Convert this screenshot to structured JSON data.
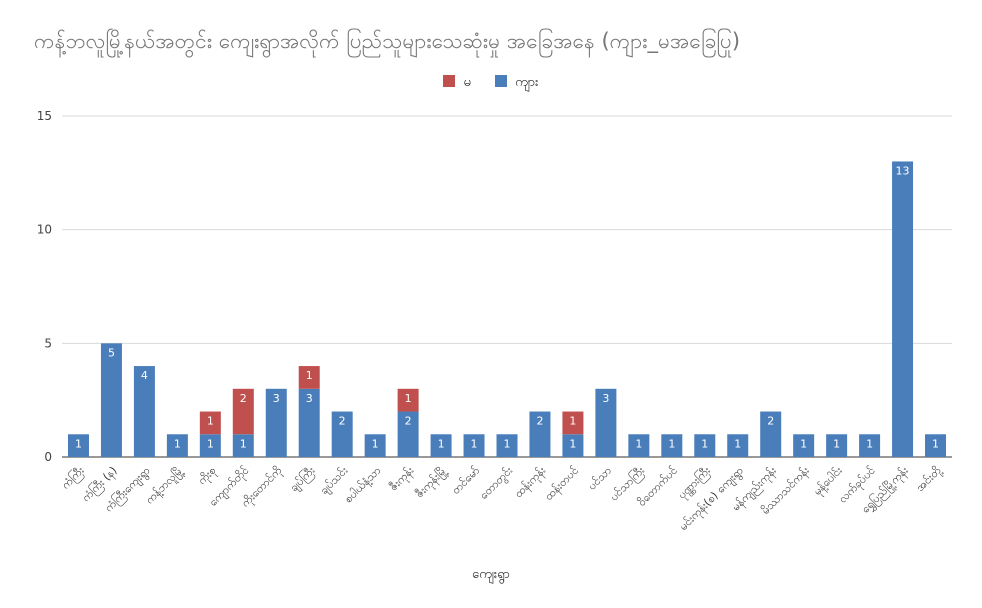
{
  "chart_data": {
    "type": "bar",
    "stacked": true,
    "title": "ကန့်ဘလူမြို့နယ်အတွင်း ကျေးရွာအလိုက် ပြည်သူများသေဆုံးမှု အခြေအနေ (ကျား_မအခြေပြု)",
    "xlabel": "ကျေးရွာ",
    "ylabel": "",
    "ylim": [
      0,
      15
    ],
    "yticks": [
      0,
      5,
      10,
      15
    ],
    "grid": true,
    "legend_position": "top",
    "categories": [
      "ကံကြီး",
      "ကံကြီး (န)",
      "ကံကြီးကျေးရွာ",
      "ကန့်ဘလူမြို့",
      "ကိုးစု",
      "ကျောက်တိုင်",
      "ကိုးတောင်ကို",
      "ချပ်ကြီး",
      "ချပ်သင်း",
      "စပါယ်နံ့သာ",
      "ဇီးကုန်း",
      "ဇီးကုန်းမြို့",
      "တင်မော်",
      "တောတွင်း",
      "ထန်းကုန်း",
      "ထန်းတပင်",
      "ပင်သာ",
      "ပင်သာကြီး",
      "ဝိတောက်ပင်",
      "ပုဏ္ဏားကြီး",
      "မင်းကုန်း(စ) ကျေးရွာ",
      "မန်ကျည်းကုန်း",
      "မိဿာသင်ကန်း",
      "မုန့်ပေါင်း",
      "လက်ခုပ်ပင်",
      "ရွှေပြည်မြို့ကုန်း",
      "အင်းတို့"
    ],
    "series": [
      {
        "name": "ကျား",
        "color": "#4a7ebb",
        "values": [
          1,
          5,
          4,
          1,
          1,
          1,
          3,
          3,
          2,
          1,
          2,
          1,
          1,
          1,
          2,
          1,
          3,
          1,
          1,
          1,
          1,
          2,
          1,
          1,
          1,
          13,
          1
        ]
      },
      {
        "name": "မ",
        "color": "#c0504d",
        "values": [
          0,
          0,
          0,
          0,
          1,
          2,
          0,
          1,
          0,
          0,
          1,
          0,
          0,
          0,
          0,
          1,
          0,
          0,
          0,
          0,
          0,
          0,
          0,
          0,
          0,
          0,
          0
        ]
      }
    ],
    "legend_order": [
      "မ",
      "ကျား"
    ]
  }
}
